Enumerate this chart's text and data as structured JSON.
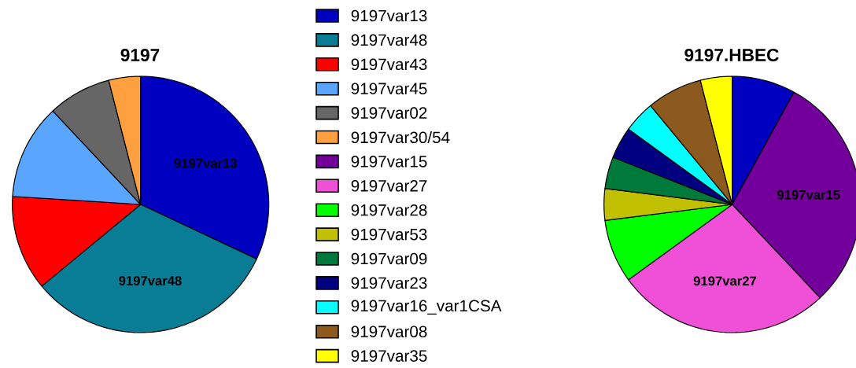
{
  "chart_data": [
    {
      "type": "pie",
      "title": "9197",
      "categories": [
        "9197var13",
        "9197var48",
        "9197var43",
        "9197var45",
        "9197var02",
        "9197var30/54"
      ],
      "values": [
        32,
        32,
        12,
        12,
        8,
        4
      ],
      "colors": [
        "#0000c0",
        "#087d95",
        "#ff0000",
        "#5aa5ff",
        "#666666",
        "#ffa040"
      ],
      "legend": "right",
      "annotations": [
        {
          "text": "9197var13",
          "x": "9197var13"
        },
        {
          "text": "9197var48",
          "x": "9197var48"
        }
      ]
    },
    {
      "type": "pie",
      "title": "9197.HBEC",
      "categories": [
        null,
        "9197var15",
        "9197var27",
        "9197var28",
        "9197var53",
        "9197var09",
        "9197var23",
        "9197var16_var1CSA",
        "9197var08",
        "9197var35"
      ],
      "values": [
        8,
        30,
        27,
        8,
        4,
        4,
        4,
        4,
        7,
        4
      ],
      "colors": [
        "#0000c0",
        "#73009a",
        "#f050d8",
        "#00ff00",
        "#c0c000",
        "#007a3a",
        "#000080",
        "#00ffff",
        "#8c5a1e",
        "#ffff00"
      ],
      "legend": "left",
      "annotations": [
        {
          "text": "9197var15",
          "x": "9197var15"
        },
        {
          "text": "9197var27",
          "x": "9197var27"
        }
      ]
    }
  ]
}
